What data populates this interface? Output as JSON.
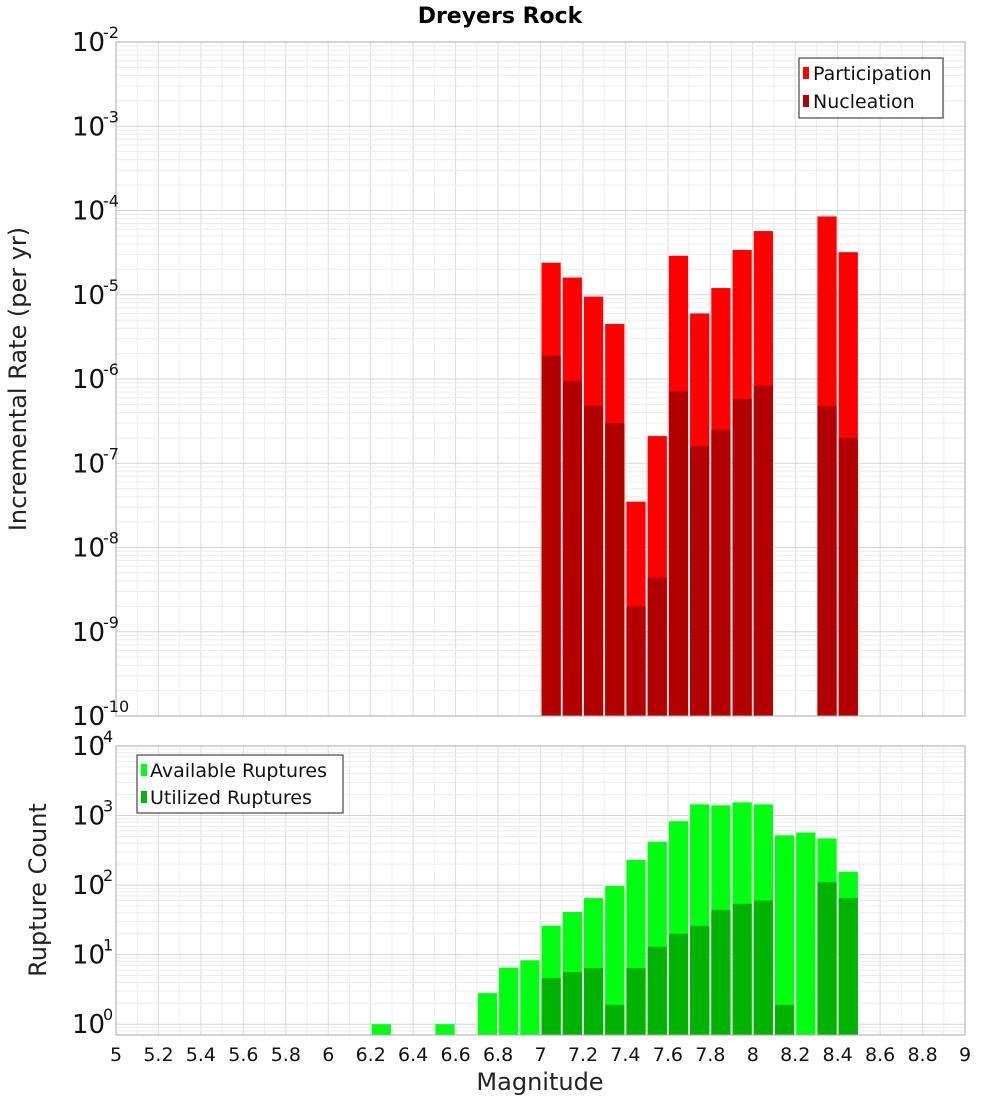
{
  "chart_data": [
    {
      "type": "bar",
      "title": "Dreyers Rock",
      "ylabel": "Incremental Rate (per yr)",
      "xlabel": "",
      "yscale": "log",
      "ylim": [
        1e-10,
        0.01
      ],
      "xlim": [
        5,
        9
      ],
      "yticks": [
        {
          "base": "10",
          "exp": "-10"
        },
        {
          "base": "10",
          "exp": "-9"
        },
        {
          "base": "10",
          "exp": "-8"
        },
        {
          "base": "10",
          "exp": "-7"
        },
        {
          "base": "10",
          "exp": "-6"
        },
        {
          "base": "10",
          "exp": "-5"
        },
        {
          "base": "10",
          "exp": "-4"
        },
        {
          "base": "10",
          "exp": "-3"
        },
        {
          "base": "10",
          "exp": "-2"
        }
      ],
      "grid": true,
      "legend": {
        "position": "top-right"
      },
      "bar_width": 0.1,
      "series": [
        {
          "name": "Participation",
          "color": "#ff0000",
          "x": [
            7.05,
            7.15,
            7.25,
            7.35,
            7.45,
            7.55,
            7.65,
            7.75,
            7.85,
            7.95,
            8.05,
            8.35,
            8.45
          ],
          "values": [
            2.4e-05,
            1.6e-05,
            9.5e-06,
            4.5e-06,
            3.5e-08,
            2.1e-07,
            2.9e-05,
            6e-06,
            1.2e-05,
            3.4e-05,
            5.7e-05,
            8.5e-05,
            3.2e-05
          ]
        },
        {
          "name": "Nucleation",
          "color": "#b20000",
          "x": [
            7.05,
            7.15,
            7.25,
            7.35,
            7.45,
            7.55,
            7.65,
            7.75,
            7.85,
            7.95,
            8.05,
            8.35,
            8.45
          ],
          "values": [
            1.9e-06,
            9.5e-07,
            4.8e-07,
            3e-07,
            2e-09,
            4.4e-09,
            7.1e-07,
            1.6e-07,
            2.5e-07,
            5.8e-07,
            8.4e-07,
            4.8e-07,
            2e-07
          ]
        }
      ]
    },
    {
      "type": "bar",
      "title": "",
      "ylabel": "Rupture Count",
      "xlabel": "Magnitude",
      "yscale": "log",
      "ylim": [
        0.7,
        10000
      ],
      "xlim": [
        5,
        9
      ],
      "yticks": [
        {
          "value": 1,
          "base": "10",
          "exp": "0"
        },
        {
          "value": 10,
          "base": "10",
          "exp": "1"
        },
        {
          "value": 100,
          "base": "10",
          "exp": "2"
        },
        {
          "value": 1000,
          "base": "10",
          "exp": "3"
        },
        {
          "value": 10000,
          "base": "10",
          "exp": "4"
        }
      ],
      "xticks": [
        "5",
        "5.2",
        "5.4",
        "5.6",
        "5.8",
        "6",
        "6.2",
        "6.4",
        "6.6",
        "6.8",
        "7",
        "7.2",
        "7.4",
        "7.6",
        "7.8",
        "8",
        "8.2",
        "8.4",
        "8.6",
        "8.8",
        "9"
      ],
      "grid": true,
      "legend": {
        "position": "top-left"
      },
      "bar_width": 0.1,
      "series": [
        {
          "name": "Available Ruptures",
          "color": "#00ff11",
          "x": [
            6.25,
            6.55,
            6.75,
            6.85,
            6.95,
            7.05,
            7.15,
            7.25,
            7.35,
            7.45,
            7.55,
            7.65,
            7.75,
            7.85,
            7.95,
            8.05,
            8.15,
            8.25,
            8.35,
            8.45
          ],
          "values": [
            1,
            1,
            2.8,
            6.5,
            8.3,
            26,
            41,
            65,
            97,
            230,
            420,
            830,
            1450,
            1400,
            1550,
            1450,
            520,
            570,
            470,
            155
          ]
        },
        {
          "name": "Utilized Ruptures",
          "color": "#00b300",
          "x": [
            7.05,
            7.15,
            7.25,
            7.35,
            7.45,
            7.55,
            7.65,
            7.75,
            7.85,
            7.95,
            8.05,
            8.15,
            8.35,
            8.45
          ],
          "values": [
            4.6,
            5.6,
            6.4,
            1.9,
            6.4,
            13,
            20,
            26,
            44,
            54,
            60,
            1.9,
            110,
            65
          ]
        }
      ]
    }
  ]
}
